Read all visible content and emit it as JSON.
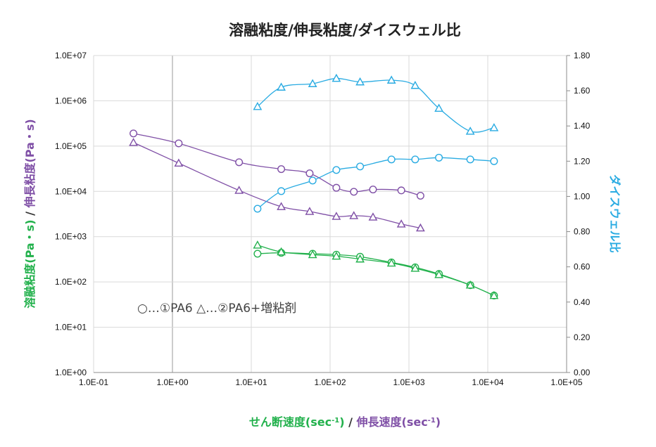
{
  "chart_data": {
    "type": "scatter",
    "title": "溶融粘度/伸長粘度/ダイスウェル比",
    "x_axis": {
      "scale": "log",
      "range": [
        0.1,
        100000
      ],
      "tick_labels": [
        "1.0E-01",
        "1.0E+00",
        "1.0E+01",
        "1.0E+02",
        "1.0E+03",
        "1.0E+04",
        "1.0E+05"
      ],
      "label_parts": [
        {
          "text": "せん断速度",
          "color": "#22b14c"
        },
        {
          "text": "(sec",
          "color": "#22b14c"
        },
        {
          "text": "-1",
          "color": "#22b14c",
          "sup": true
        },
        {
          "text": ")",
          "color": "#22b14c"
        },
        {
          "text": " / ",
          "color": "#333333"
        },
        {
          "text": "伸長速度",
          "color": "#7f4fa6"
        },
        {
          "text": "(sec",
          "color": "#7f4fa6"
        },
        {
          "text": "-1",
          "color": "#7f4fa6",
          "sup": true
        },
        {
          "text": ")",
          "color": "#7f4fa6"
        }
      ]
    },
    "y_axis_left": {
      "scale": "log",
      "range": [
        1,
        10000000
      ],
      "tick_labels": [
        "1.0E+00",
        "1.0E+01",
        "1.0E+02",
        "1.0E+03",
        "1.0E+04",
        "1.0E+05",
        "1.0E+06",
        "1.0E+07"
      ],
      "label_parts": [
        {
          "text": "溶融粘度(Pa・s)",
          "color": "#22b14c"
        },
        {
          "text": " / ",
          "color": "#333333"
        },
        {
          "text": "伸長粘度(Pa・s)",
          "color": "#7f4fa6"
        }
      ]
    },
    "y_axis_right": {
      "scale": "linear",
      "range": [
        0,
        1.8
      ],
      "tick_labels": [
        "0.00",
        "0.20",
        "0.40",
        "0.60",
        "0.80",
        "1.00",
        "1.20",
        "1.40",
        "1.60",
        "1.80"
      ],
      "label": "ダイスウェル比",
      "label_color": "#29abe2"
    },
    "grid": "major vertical gridlines, horizontal gridlines at left-axis decades",
    "legend_text": "○…①PA6 △…②PA6+増粘剤",
    "series": [
      {
        "axis": "left",
        "marker": "circle",
        "color": "#22b14c",
        "x": [
          12,
          24,
          60,
          120,
          240,
          600,
          1200,
          2400,
          6000,
          12000
        ],
        "y": [
          420,
          440,
          420,
          400,
          360,
          270,
          210,
          150,
          85,
          50
        ]
      },
      {
        "axis": "left",
        "marker": "triangle",
        "color": "#22b14c",
        "x": [
          12,
          24,
          60,
          120,
          240,
          600,
          1200,
          2400,
          6000,
          12000
        ],
        "y": [
          650,
          460,
          400,
          370,
          320,
          260,
          200,
          145,
          85,
          50
        ]
      },
      {
        "axis": "left",
        "marker": "circle",
        "color": "#7f4fa6",
        "x": [
          0.32,
          1.2,
          7,
          24,
          55,
          120,
          200,
          350,
          800,
          1400
        ],
        "y": [
          190000,
          115000,
          44000,
          31000,
          25000,
          12000,
          9800,
          11000,
          10500,
          8000
        ]
      },
      {
        "axis": "left",
        "marker": "triangle",
        "color": "#7f4fa6",
        "x": [
          0.32,
          1.2,
          7,
          24,
          55,
          120,
          200,
          350,
          800,
          1400
        ],
        "y": [
          120000,
          42000,
          10500,
          4600,
          3600,
          2800,
          2900,
          2700,
          1900,
          1550
        ]
      },
      {
        "axis": "right",
        "marker": "circle",
        "color": "#29abe2",
        "x": [
          12,
          24,
          60,
          120,
          240,
          600,
          1200,
          2400,
          6000,
          12000
        ],
        "y": [
          0.93,
          1.03,
          1.09,
          1.15,
          1.17,
          1.21,
          1.21,
          1.22,
          1.21,
          1.2
        ]
      },
      {
        "axis": "right",
        "marker": "triangle",
        "color": "#29abe2",
        "x": [
          12,
          24,
          60,
          120,
          240,
          600,
          1200,
          2400,
          6000,
          12000
        ],
        "y": [
          1.51,
          1.62,
          1.64,
          1.67,
          1.65,
          1.66,
          1.63,
          1.5,
          1.37,
          1.39
        ]
      }
    ]
  }
}
